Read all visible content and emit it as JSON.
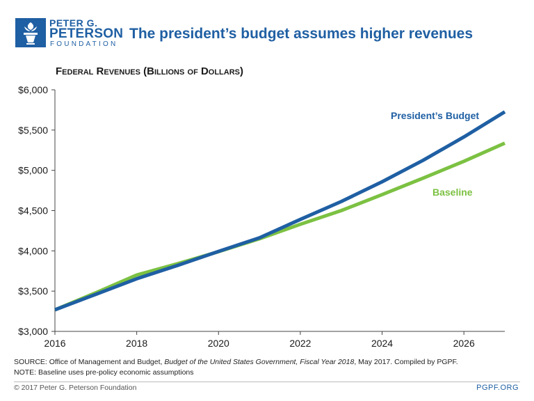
{
  "header": {
    "logo_line1": "PETER G.",
    "logo_line2": "PETERSON",
    "logo_line3": "FOUNDATION",
    "title": "The president’s budget assumes higher revenues"
  },
  "colors": {
    "brand": "#1f5fa3",
    "presidents_budget": "#1f5fa3",
    "baseline": "#7cc142"
  },
  "chart_data": {
    "type": "line",
    "title": "Federal Revenues (Billions of Dollars)",
    "xlabel": "",
    "ylabel": "",
    "xlim": [
      2016,
      2027
    ],
    "ylim": [
      3000,
      6000
    ],
    "xticks": [
      2016,
      2018,
      2020,
      2022,
      2024,
      2026
    ],
    "xtick_labels": [
      "2016",
      "2018",
      "2020",
      "2022",
      "2024",
      "2026"
    ],
    "yticks": [
      3000,
      3500,
      4000,
      4500,
      5000,
      5500,
      6000
    ],
    "ytick_labels": [
      "$3,000",
      "$3,500",
      "$4,000",
      "$4,500",
      "$5,000",
      "$5,500",
      "$6,000"
    ],
    "grid": false,
    "x": [
      2016,
      2017,
      2018,
      2019,
      2020,
      2021,
      2022,
      2023,
      2024,
      2025,
      2026,
      2027
    ],
    "series": [
      {
        "name": "President’s Budget",
        "color": "#1f5fa3",
        "values": [
          3268,
          3460,
          3654,
          3820,
          3993,
          4162,
          4390,
          4612,
          4858,
          5124,
          5415,
          5727
        ]
      },
      {
        "name": "Baseline",
        "color": "#7cc142",
        "values": [
          3268,
          3480,
          3700,
          3840,
          3990,
          4150,
          4330,
          4500,
          4698,
          4903,
          5112,
          5338
        ]
      }
    ]
  },
  "footer": {
    "source_prefix": "SOURCE: Office of Management and Budget, ",
    "source_italic": "Budget of the United States Government, Fiscal Year 2018",
    "source_suffix": ", May 2017. Compiled by PGPF.",
    "note": "NOTE: Baseline uses pre-policy economic assumptions",
    "copyright": "© 2017 Peter G. Peterson Foundation",
    "site": "PGPF.ORG"
  }
}
